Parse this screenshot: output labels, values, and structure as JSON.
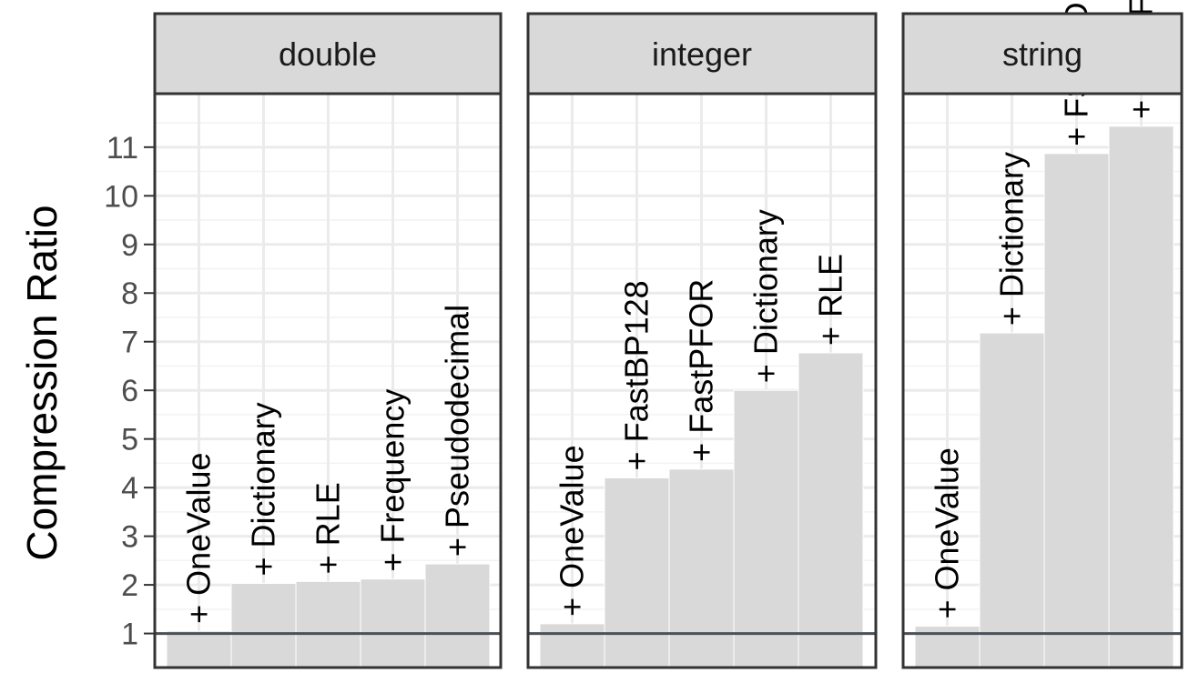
{
  "chart_data": {
    "type": "bar",
    "ylabel": "Compression Ratio",
    "xlabel": "",
    "ylim": [
      0.3,
      12.1
    ],
    "yticks": [
      1,
      2,
      3,
      4,
      5,
      6,
      7,
      8,
      9,
      10,
      11
    ],
    "baseline": 1,
    "grid": true,
    "legend": "none",
    "colors": {
      "bar": "#d9d9d9",
      "strip": "#d9d9d9",
      "panel_border": "#333333",
      "grid_major": "#ebebeb",
      "grid_minor": "#f2f2f2",
      "baseline": "#4a5059"
    },
    "panels": [
      {
        "name": "double",
        "categories": [
          "+ OneValue",
          "+ Dictionary",
          "+ RLE",
          "+ Frequency",
          "+ Pseudodecimal"
        ],
        "values": [
          1.05,
          2.03,
          2.07,
          2.12,
          2.43
        ]
      },
      {
        "name": "integer",
        "categories": [
          "+ OneValue",
          "+ FastBP128",
          "+ FastPFOR",
          "+ Dictionary",
          "+ RLE"
        ],
        "values": [
          1.2,
          4.2,
          4.38,
          6.0,
          6.77
        ]
      },
      {
        "name": "string",
        "categories": [
          "+ OneValue",
          "+ Dictionary",
          "+ FSST Dict",
          "+ Raw FSST"
        ],
        "values": [
          1.15,
          7.18,
          10.87,
          11.43
        ]
      }
    ]
  }
}
